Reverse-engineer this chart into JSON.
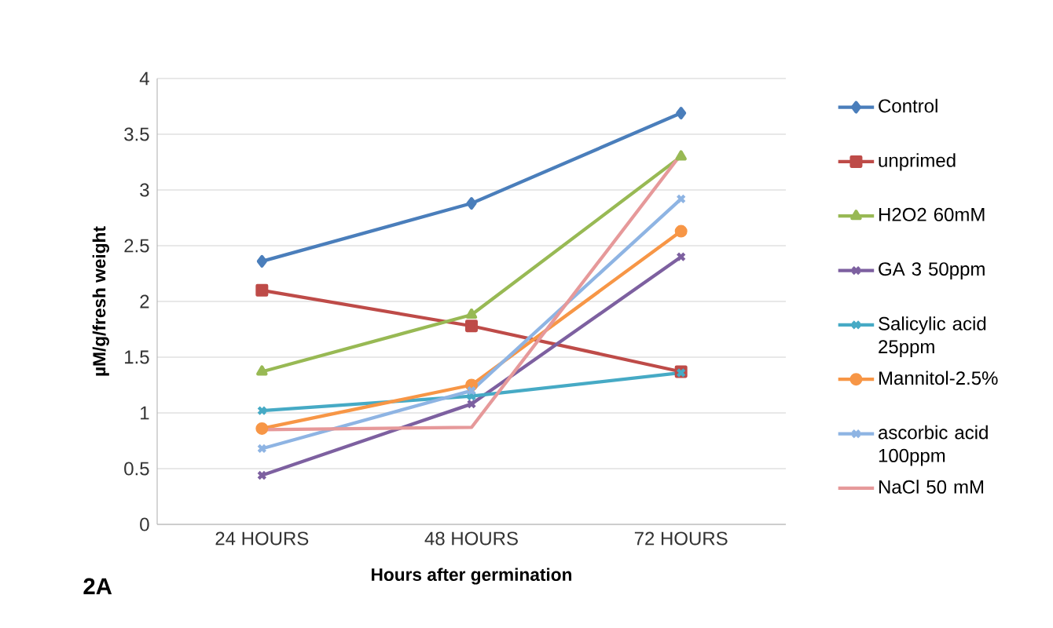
{
  "chart_data": {
    "type": "line",
    "xlabel": "Hours after germination",
    "ylabel": "µM/g/fresh weight",
    "categories": [
      "24 HOURS",
      "48 HOURS",
      "72 HOURS"
    ],
    "ylim": [
      0,
      4
    ],
    "yticks": [
      0,
      0.5,
      1,
      1.5,
      2,
      2.5,
      3,
      3.5,
      4
    ],
    "grid": "y",
    "legend": "right",
    "annotations": [
      "2A"
    ],
    "series": [
      {
        "name": "Control",
        "color": "#4a7ebb",
        "marker": "diamond",
        "values": [
          2.36,
          2.88,
          3.69
        ]
      },
      {
        "name": "unprimed",
        "color": "#be4b48",
        "marker": "square",
        "values": [
          2.1,
          1.78,
          1.37
        ]
      },
      {
        "name": "H2O2 60mM",
        "color": "#98b954",
        "marker": "triangle",
        "values": [
          1.37,
          1.88,
          3.3
        ]
      },
      {
        "name": "GA 3 50ppm",
        "color": "#7d60a0",
        "marker": "cross",
        "values": [
          0.44,
          1.08,
          2.4
        ]
      },
      {
        "name": "Salicylic acid 25ppm",
        "color": "#46aac5",
        "marker": "cross",
        "values": [
          1.02,
          1.15,
          1.36
        ]
      },
      {
        "name": "Mannitol-2.5%",
        "color": "#f79646",
        "marker": "circle",
        "values": [
          0.86,
          1.25,
          2.63
        ]
      },
      {
        "name": "ascorbic acid 100ppm",
        "color": "#8eb4e3",
        "marker": "cross",
        "values": [
          0.68,
          1.2,
          2.92
        ]
      },
      {
        "name": "NaCl 50 mM",
        "color": "#e6999a",
        "marker": "none",
        "values": [
          0.85,
          0.87,
          3.32
        ]
      }
    ]
  }
}
